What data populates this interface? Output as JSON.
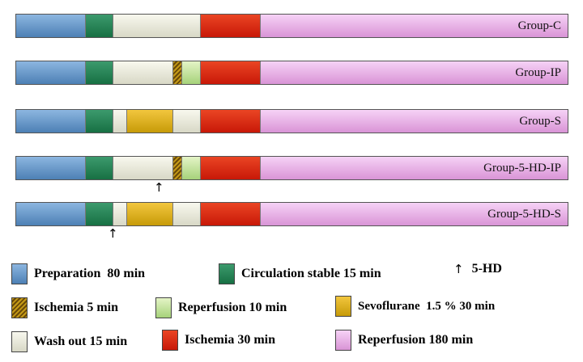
{
  "groups": [
    {
      "label": "Group-C",
      "segments": [
        "prep",
        "circ",
        "wash",
        "isch30",
        "rep180"
      ]
    },
    {
      "label": "Group-IP",
      "segments": [
        "prep",
        "circ",
        "wash",
        "isch5",
        "rep10",
        "isch30",
        "rep180"
      ]
    },
    {
      "label": "Group-S",
      "segments": [
        "prep",
        "circ",
        "wash",
        "sevo",
        "wash",
        "isch30",
        "rep180"
      ]
    },
    {
      "label": "Group-5-HD-IP",
      "segments": [
        "prep",
        "circ",
        "wash",
        "isch5",
        "rep10",
        "isch30",
        "rep180"
      ]
    },
    {
      "label": "Group-5-HD-S",
      "segments": [
        "prep",
        "circ",
        "wash",
        "sevo",
        "wash",
        "isch30",
        "rep180"
      ]
    }
  ],
  "arrow_symbol": "↑",
  "legend": {
    "prep": "Preparation  80 min",
    "circ": "Circulation stable 15 min",
    "fivehd": "5-HD",
    "isch5": "Ischemia 5 min",
    "rep10": "Reperfusion 10 min",
    "sevo": "Sevoflurane  1.5 % 30 min",
    "wash": "Wash out 15 min",
    "isch30": "Ischemia 30 min",
    "rep180": "Reperfusion 180 min"
  },
  "colors": {
    "prep": "#6a9acb",
    "circ": "#237f55",
    "wash": "#e8e8dc",
    "isch30": "#d92a12",
    "rep180": "#e6b2e6",
    "isch5": "#9a7512",
    "rep10": "#c4e4a0",
    "sevo": "#deb020"
  }
}
